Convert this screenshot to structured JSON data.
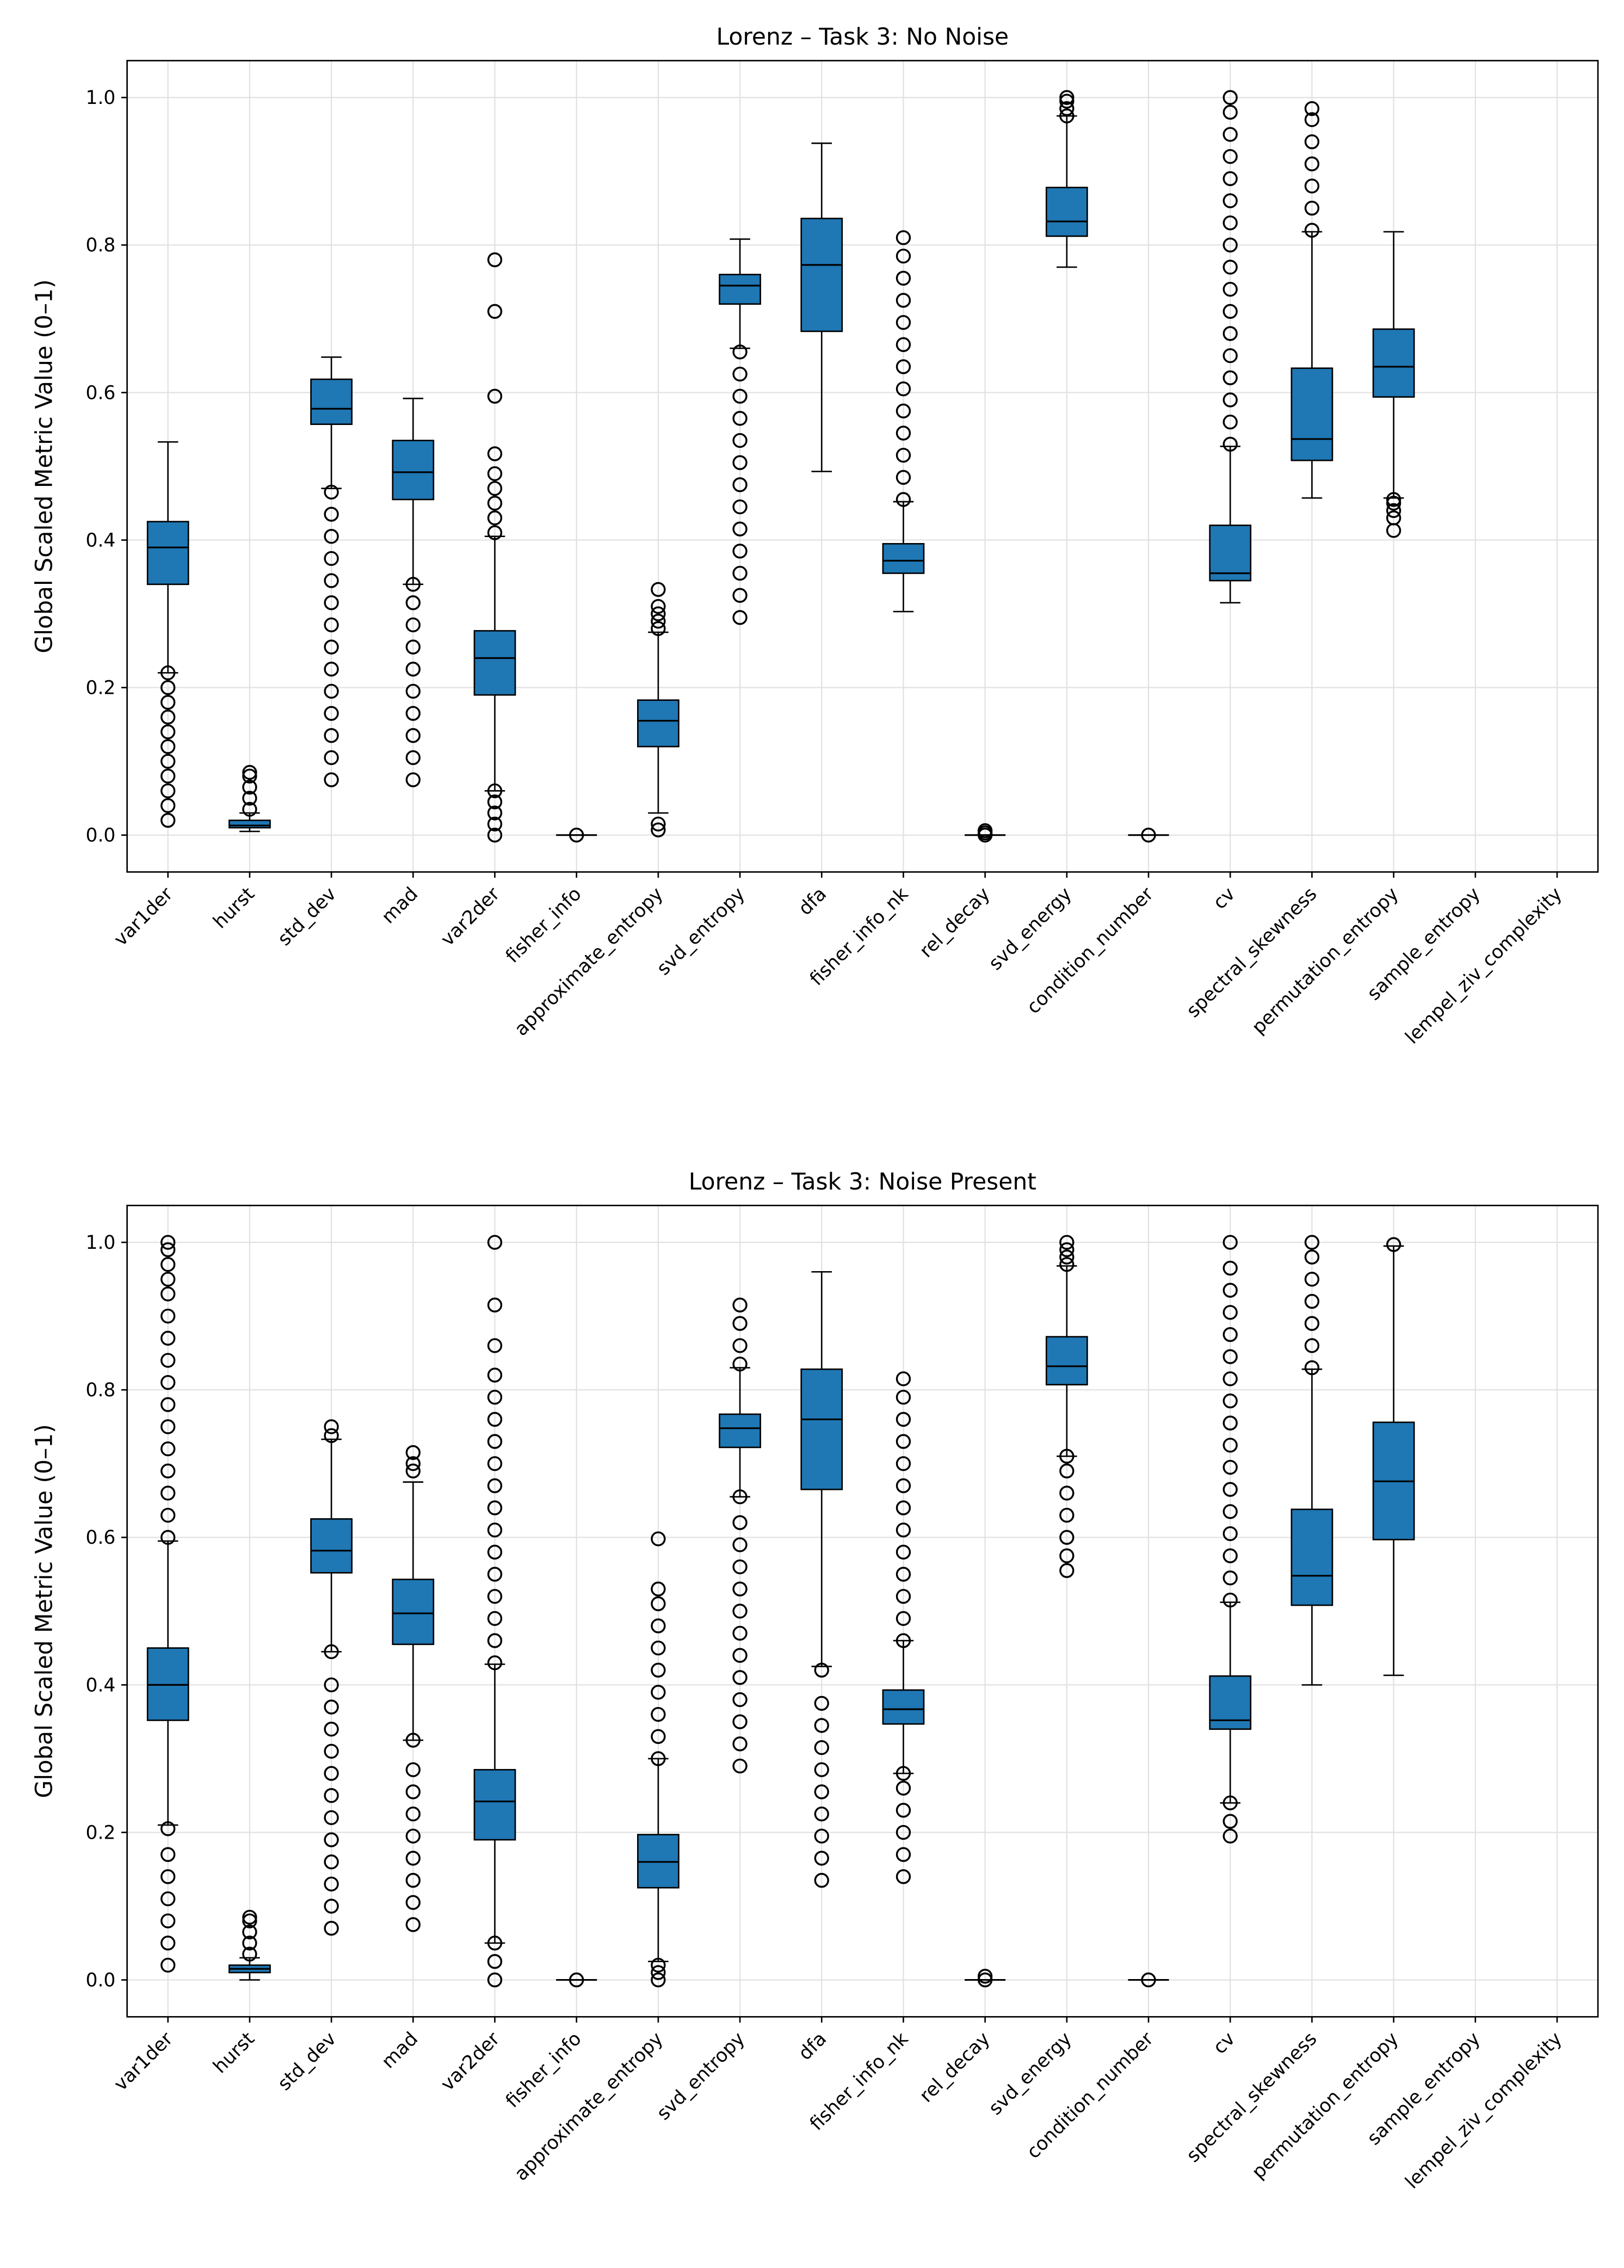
{
  "chart_data": [
    {
      "type": "box",
      "title": "Lorenz – Task 3: No Noise",
      "ylabel": "Global Scaled Metric Value (0–1)",
      "color": "#1f77b4",
      "grid": true,
      "categories": [
        "var1der",
        "hurst",
        "std_dev",
        "mad",
        "var2der",
        "fisher_info",
        "approximate_entropy",
        "svd_entropy",
        "dfa",
        "fisher_info_nk",
        "rel_decay",
        "svd_energy",
        "condition_number",
        "cv",
        "spectral_skewness",
        "permutation_entropy",
        "sample_entropy",
        "lempel_ziv_complexity"
      ],
      "whisker_low": [
        0.22,
        0.005,
        0.47,
        0.34,
        0.06,
        0,
        0.03,
        0.66,
        0.493,
        0.303,
        0,
        0.77,
        0,
        0.315,
        0.457,
        0.457,
        null,
        null
      ],
      "q1": [
        0.34,
        0.01,
        0.557,
        0.455,
        0.19,
        0,
        0.12,
        0.72,
        0.683,
        0.355,
        0,
        0.812,
        0,
        0.345,
        0.508,
        0.594,
        null,
        null
      ],
      "median": [
        0.39,
        0.013,
        0.578,
        0.492,
        0.24,
        0,
        0.155,
        0.745,
        0.773,
        0.372,
        0,
        0.832,
        0,
        0.355,
        0.537,
        0.635,
        null,
        null
      ],
      "q3": [
        0.425,
        0.02,
        0.618,
        0.535,
        0.277,
        0,
        0.183,
        0.76,
        0.836,
        0.395,
        0,
        0.878,
        0,
        0.42,
        0.633,
        0.686,
        null,
        null
      ],
      "whisker_high": [
        0.533,
        0.03,
        0.648,
        0.592,
        0.405,
        0,
        0.275,
        0.808,
        0.938,
        0.452,
        0,
        0.975,
        0,
        0.527,
        0.818,
        0.818,
        null,
        null
      ],
      "outliers": [
        [
          0.02,
          0.04,
          0.06,
          0.08,
          0.1,
          0.12,
          0.14,
          0.16,
          0.18,
          0.2,
          0.22
        ],
        [
          0.035,
          0.05,
          0.065,
          0.08,
          0.085
        ],
        [
          0.075,
          0.105,
          0.135,
          0.165,
          0.195,
          0.225,
          0.255,
          0.285,
          0.315,
          0.345,
          0.375,
          0.405,
          0.435,
          0.465
        ],
        [
          0.075,
          0.105,
          0.135,
          0.165,
          0.195,
          0.225,
          0.255,
          0.285,
          0.315,
          0.34
        ],
        [
          0,
          0.015,
          0.03,
          0.045,
          0.06,
          0.41,
          0.43,
          0.45,
          0.47,
          0.49,
          0.517,
          0.595,
          0.71,
          0.78
        ],
        [
          0
        ],
        [
          0.007,
          0.015,
          0.28,
          0.29,
          0.3,
          0.31,
          0.333
        ],
        [
          0.295,
          0.325,
          0.355,
          0.385,
          0.415,
          0.445,
          0.475,
          0.505,
          0.535,
          0.565,
          0.595,
          0.625,
          0.655
        ],
        [],
        [
          0.455,
          0.485,
          0.515,
          0.545,
          0.575,
          0.605,
          0.635,
          0.665,
          0.695,
          0.725,
          0.755,
          0.785,
          0.81
        ],
        [
          0,
          0.003,
          0.006
        ],
        [
          0.975,
          0.985,
          0.995,
          1.0
        ],
        [
          0
        ],
        [
          0.53,
          0.56,
          0.59,
          0.62,
          0.65,
          0.68,
          0.71,
          0.74,
          0.77,
          0.8,
          0.83,
          0.86,
          0.89,
          0.92,
          0.95,
          0.98,
          1.0
        ],
        [
          0.82,
          0.85,
          0.88,
          0.91,
          0.94,
          0.97,
          0.985
        ],
        [
          0.413,
          0.43,
          0.44,
          0.45,
          0.455
        ],
        [],
        []
      ],
      "ylim": [
        -0.05,
        1.05
      ],
      "yticks": [
        {
          "value": 0,
          "label": "0.0"
        },
        {
          "value": 0.2,
          "label": "0.2"
        },
        {
          "value": 0.4,
          "label": "0.4"
        },
        {
          "value": 0.6,
          "label": "0.6"
        },
        {
          "value": 0.8,
          "label": "0.8"
        },
        {
          "value": 1,
          "label": "1.0"
        }
      ]
    },
    {
      "type": "box",
      "title": "Lorenz – Task 3: Noise Present",
      "ylabel": "Global Scaled Metric Value (0–1)",
      "color": "#1f77b4",
      "grid": true,
      "categories": [
        "var1der",
        "hurst",
        "std_dev",
        "mad",
        "var2der",
        "fisher_info",
        "approximate_entropy",
        "svd_entropy",
        "dfa",
        "fisher_info_nk",
        "rel_decay",
        "svd_energy",
        "condition_number",
        "cv",
        "spectral_skewness",
        "permutation_entropy",
        "sample_entropy",
        "lempel_ziv_complexity"
      ],
      "whisker_low": [
        0.21,
        0,
        0.445,
        0.325,
        0.05,
        0,
        0.025,
        0.655,
        0.425,
        0.28,
        0,
        0.71,
        0,
        0.24,
        0.4,
        0.413,
        null,
        null
      ],
      "q1": [
        0.352,
        0.01,
        0.552,
        0.455,
        0.19,
        0,
        0.125,
        0.722,
        0.665,
        0.347,
        0,
        0.807,
        0,
        0.34,
        0.508,
        0.597,
        null,
        null
      ],
      "median": [
        0.4,
        0.015,
        0.582,
        0.497,
        0.242,
        0,
        0.16,
        0.748,
        0.76,
        0.367,
        0,
        0.832,
        0,
        0.352,
        0.548,
        0.676,
        null,
        null
      ],
      "q3": [
        0.45,
        0.02,
        0.625,
        0.543,
        0.285,
        0,
        0.197,
        0.767,
        0.828,
        0.393,
        0,
        0.872,
        0,
        0.412,
        0.638,
        0.756,
        null,
        null
      ],
      "whisker_high": [
        0.595,
        0.03,
        0.733,
        0.675,
        0.428,
        0,
        0.3,
        0.83,
        0.96,
        0.46,
        0,
        0.968,
        0,
        0.512,
        0.828,
        0.995,
        null,
        null
      ],
      "outliers": [
        [
          0.02,
          0.05,
          0.08,
          0.11,
          0.14,
          0.17,
          0.205,
          0.6,
          0.63,
          0.66,
          0.69,
          0.72,
          0.75,
          0.78,
          0.81,
          0.84,
          0.87,
          0.9,
          0.93,
          0.95,
          0.97,
          0.99,
          1.0
        ],
        [
          0.035,
          0.05,
          0.065,
          0.08,
          0.085
        ],
        [
          0.07,
          0.1,
          0.13,
          0.16,
          0.19,
          0.22,
          0.25,
          0.28,
          0.31,
          0.34,
          0.37,
          0.4,
          0.445,
          0.738,
          0.75
        ],
        [
          0.075,
          0.105,
          0.135,
          0.165,
          0.195,
          0.225,
          0.255,
          0.285,
          0.325,
          0.69,
          0.7,
          0.715
        ],
        [
          0,
          0.025,
          0.05,
          0.43,
          0.46,
          0.49,
          0.52,
          0.55,
          0.58,
          0.61,
          0.64,
          0.67,
          0.7,
          0.73,
          0.76,
          0.79,
          0.82,
          0.86,
          0.915,
          1.0
        ],
        [
          0
        ],
        [
          0,
          0.01,
          0.02,
          0.3,
          0.33,
          0.36,
          0.39,
          0.42,
          0.45,
          0.48,
          0.51,
          0.53,
          0.598
        ],
        [
          0.29,
          0.32,
          0.35,
          0.38,
          0.41,
          0.44,
          0.47,
          0.5,
          0.53,
          0.56,
          0.59,
          0.62,
          0.655,
          0.835,
          0.86,
          0.89,
          0.915
        ],
        [
          0.135,
          0.165,
          0.195,
          0.225,
          0.255,
          0.285,
          0.315,
          0.345,
          0.375,
          0.42
        ],
        [
          0.14,
          0.17,
          0.2,
          0.23,
          0.26,
          0.28,
          0.46,
          0.49,
          0.52,
          0.55,
          0.58,
          0.61,
          0.64,
          0.67,
          0.7,
          0.73,
          0.76,
          0.79,
          0.815
        ],
        [
          0,
          0.005
        ],
        [
          0.555,
          0.575,
          0.6,
          0.63,
          0.66,
          0.69,
          0.71,
          0.97,
          0.98,
          0.99,
          1.0
        ],
        [
          0
        ],
        [
          0.195,
          0.215,
          0.24,
          0.515,
          0.545,
          0.575,
          0.605,
          0.635,
          0.665,
          0.695,
          0.725,
          0.755,
          0.785,
          0.815,
          0.845,
          0.875,
          0.905,
          0.935,
          0.965,
          1.0
        ],
        [
          0.83,
          0.86,
          0.89,
          0.92,
          0.95,
          0.98,
          1.0
        ],
        [
          0.997
        ],
        [],
        []
      ],
      "ylim": [
        -0.05,
        1.05
      ],
      "yticks": [
        {
          "value": 0,
          "label": "0.0"
        },
        {
          "value": 0.2,
          "label": "0.2"
        },
        {
          "value": 0.4,
          "label": "0.4"
        },
        {
          "value": 0.6,
          "label": "0.6"
        },
        {
          "value": 0.8,
          "label": "0.8"
        },
        {
          "value": 1,
          "label": "1.0"
        }
      ]
    }
  ]
}
